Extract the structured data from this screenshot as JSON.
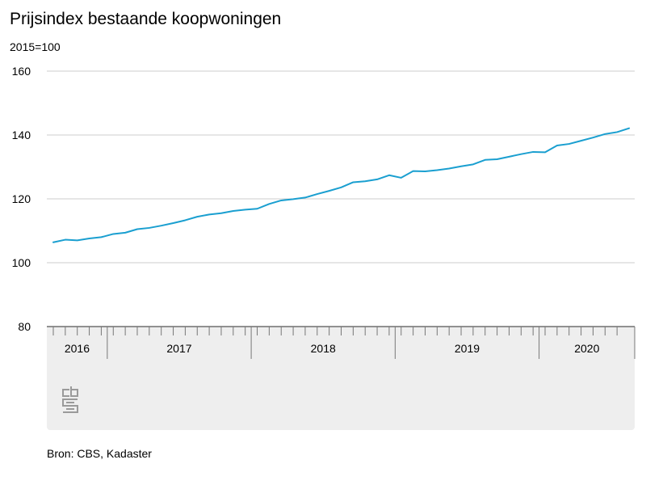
{
  "chart_data": {
    "type": "line",
    "title": "Prijsindex bestaande koopwoningen",
    "unit_label": "2015=100",
    "source": "Bron: CBS, Kadaster",
    "logo_icon": "cbs-logo-icon",
    "line_color": "#1a9fd0",
    "ylim": [
      80,
      160
    ],
    "yticks": [
      "80",
      "100",
      "120",
      "140",
      "160"
    ],
    "grid": true,
    "years": [
      {
        "label": "2016",
        "months": 5
      },
      {
        "label": "2017",
        "months": 12
      },
      {
        "label": "2018",
        "months": 12
      },
      {
        "label": "2019",
        "months": 12
      },
      {
        "label": "2020",
        "months": 7
      }
    ],
    "series": [
      {
        "values": [
          106.4,
          107.2,
          107.0,
          107.6,
          108.0,
          109.0,
          109.4,
          110.5,
          110.9,
          111.6,
          112.4,
          113.3,
          114.4,
          115.1,
          115.5,
          116.2,
          116.6,
          116.9,
          118.4,
          119.5,
          119.9,
          120.4,
          121.5,
          122.5,
          123.6,
          125.2,
          125.5,
          126.1,
          127.4,
          126.6,
          128.7,
          128.6,
          129.0,
          129.5,
          130.2,
          130.8,
          132.2,
          132.4,
          133.2,
          134.0,
          134.7,
          134.6,
          136.7,
          137.2,
          138.2,
          139.2,
          140.3,
          140.9,
          142.1
        ]
      }
    ]
  }
}
